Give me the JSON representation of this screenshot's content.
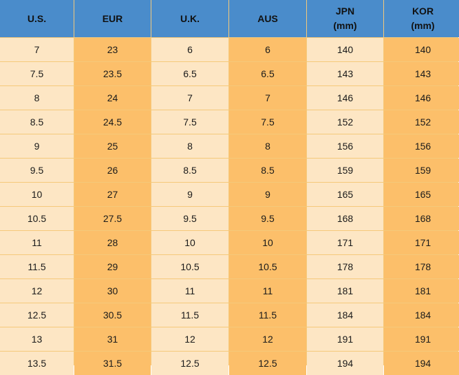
{
  "columns": [
    {
      "label": "U.S.",
      "unit": ""
    },
    {
      "label": "EUR",
      "unit": ""
    },
    {
      "label": "U.K.",
      "unit": ""
    },
    {
      "label": "AUS",
      "unit": ""
    },
    {
      "label": "JPN",
      "unit": "(mm)"
    },
    {
      "label": "KOR",
      "unit": "(mm)"
    }
  ],
  "rows": [
    [
      "7",
      "23",
      "6",
      "6",
      "140",
      "140"
    ],
    [
      "7.5",
      "23.5",
      "6.5",
      "6.5",
      "143",
      "143"
    ],
    [
      "8",
      "24",
      "7",
      "7",
      "146",
      "146"
    ],
    [
      "8.5",
      "24.5",
      "7.5",
      "7.5",
      "152",
      "152"
    ],
    [
      "9",
      "25",
      "8",
      "8",
      "156",
      "156"
    ],
    [
      "9.5",
      "26",
      "8.5",
      "8.5",
      "159",
      "159"
    ],
    [
      "10",
      "27",
      "9",
      "9",
      "165",
      "165"
    ],
    [
      "10.5",
      "27.5",
      "9.5",
      "9.5",
      "168",
      "168"
    ],
    [
      "11",
      "28",
      "10",
      "10",
      "171",
      "171"
    ],
    [
      "11.5",
      "29",
      "10.5",
      "10.5",
      "178",
      "178"
    ],
    [
      "12",
      "30",
      "11",
      "11",
      "181",
      "181"
    ],
    [
      "12.5",
      "30.5",
      "11.5",
      "11.5",
      "184",
      "184"
    ],
    [
      "13",
      "31",
      "12",
      "12",
      "191",
      "191"
    ],
    [
      "13.5",
      "31.5",
      "12.5",
      "12.5",
      "194",
      "194"
    ]
  ],
  "colors": {
    "header_bg": "#4a8ccb",
    "light_column_bg": "#fde6c4",
    "dark_column_bg": "#fcbf6a",
    "grid_line": "#f5c97a"
  }
}
